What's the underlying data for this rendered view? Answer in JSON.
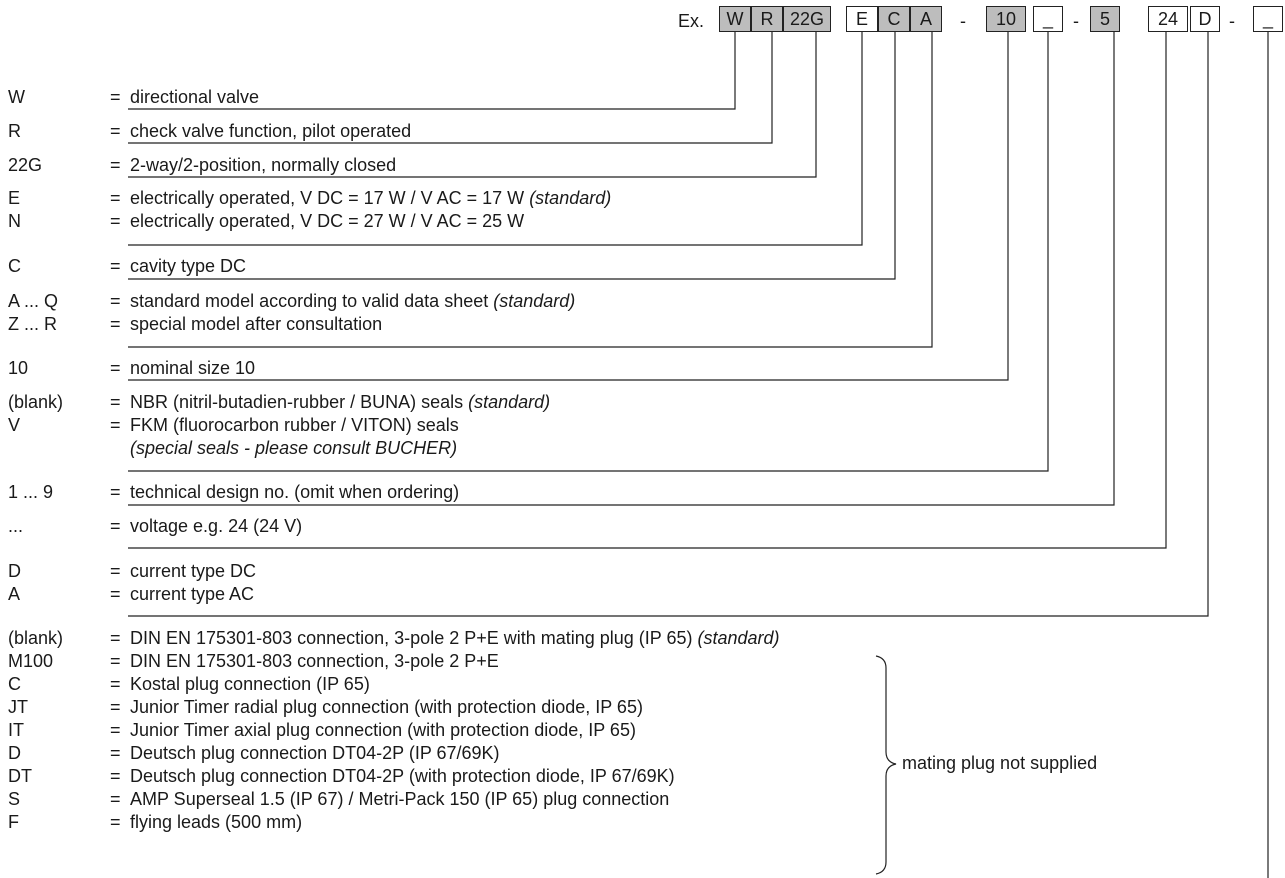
{
  "header": {
    "example_label": "Ex.",
    "codes": [
      "W",
      "R",
      "22G",
      "E",
      "C",
      "A",
      "10",
      "_",
      "5",
      "24",
      "D",
      "_"
    ],
    "separator": "-"
  },
  "rows": [
    {
      "code": "W",
      "eq": "=",
      "text": "directional valve"
    },
    {
      "code": "R",
      "eq": "=",
      "text": "check valve function, pilot operated"
    },
    {
      "code": "22G",
      "eq": "=",
      "text": "2-way/2-position, normally closed"
    },
    {
      "code": "E",
      "eq": "=",
      "text": "electrically operated, V DC = 17 W / V AC = 17 W",
      "note": "(standard)"
    },
    {
      "code": "N",
      "eq": "=",
      "text": "electrically operated, V DC = 27 W / V AC = 25 W"
    },
    {
      "code": "C",
      "eq": "=",
      "text": "cavity type DC"
    },
    {
      "code": "A ... Q",
      "eq": "=",
      "text": "standard model according to valid data sheet",
      "note": "(standard)"
    },
    {
      "code": "Z ... R",
      "eq": "=",
      "text": "special model after consultation"
    },
    {
      "code": "10",
      "eq": "=",
      "text": "nominal size 10"
    },
    {
      "code": "(blank)",
      "eq": "=",
      "text": "NBR (nitril-butadien-rubber / BUNA) seals",
      "note": "(standard)"
    },
    {
      "code": "V",
      "eq": "=",
      "text": "FKM (fluorocarbon rubber / VITON) seals"
    },
    {
      "code": "",
      "eq": "",
      "text": "",
      "note": "(special seals - please consult BUCHER)"
    },
    {
      "code": "1 ... 9",
      "eq": "=",
      "text": "technical design no. (omit when ordering)"
    },
    {
      "code": "...",
      "eq": "=",
      "text": "voltage e.g. 24 (24 V)"
    },
    {
      "code": "D",
      "eq": "=",
      "text": "current type DC"
    },
    {
      "code": "A",
      "eq": "=",
      "text": "current type AC"
    },
    {
      "code": "(blank)",
      "eq": "=",
      "text": "DIN EN 175301-803 connection, 3-pole 2 P+E with mating plug (IP 65)",
      "note": "(standard)"
    },
    {
      "code": "M100",
      "eq": "=",
      "text": "DIN EN 175301-803 connection, 3-pole 2 P+E"
    },
    {
      "code": "C",
      "eq": "=",
      "text": "Kostal plug connection (IP 65)"
    },
    {
      "code": "JT",
      "eq": "=",
      "text": "Junior Timer radial plug connection (with protection diode, IP 65)"
    },
    {
      "code": "IT",
      "eq": "=",
      "text": "Junior Timer axial plug connection (with protection diode, IP 65)"
    },
    {
      "code": "D",
      "eq": "=",
      "text": "Deutsch plug connection DT04-2P (IP 67/69K)"
    },
    {
      "code": "DT",
      "eq": "=",
      "text": "Deutsch plug connection DT04-2P (with protection diode, IP 67/69K)"
    },
    {
      "code": "S",
      "eq": "=",
      "text": "AMP Superseal 1.5 (IP 67) / Metri-Pack 150 (IP 65) plug connection"
    },
    {
      "code": "F",
      "eq": "=",
      "text": "flying leads (500 mm)"
    }
  ],
  "brace_label": "mating plug not supplied",
  "colors": {
    "box_fill": "#bdbdbd",
    "line": "#222222",
    "text": "#1a1a1a"
  }
}
